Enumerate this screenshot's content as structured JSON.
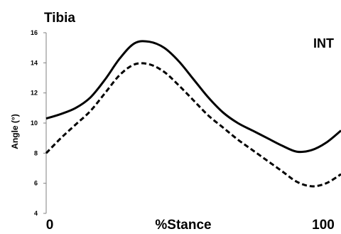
{
  "chart_data": {
    "type": "line",
    "title": "Tibia",
    "corner_label": "INT",
    "xlabel": "%Stance",
    "ylabel": "Angle (°)",
    "xlim": [
      0,
      100
    ],
    "ylim": [
      4,
      16
    ],
    "yticks": [
      "4",
      "6",
      "8",
      "10",
      "12",
      "14",
      "16"
    ],
    "xtick_labels": [
      "0",
      "100"
    ],
    "x": [
      0,
      5,
      10,
      15,
      20,
      25,
      30,
      35,
      40,
      45,
      50,
      55,
      60,
      65,
      70,
      75,
      80,
      85,
      90,
      95,
      100
    ],
    "series": [
      {
        "style": "solid",
        "color": "#000000",
        "values": [
          10.3,
          10.6,
          11.0,
          11.7,
          12.9,
          14.3,
          15.3,
          15.4,
          15.0,
          14.1,
          12.9,
          11.7,
          10.7,
          10.0,
          9.5,
          9.0,
          8.5,
          8.1,
          8.2,
          8.7,
          9.5
        ]
      },
      {
        "style": "dashed",
        "color": "#000000",
        "values": [
          8.0,
          9.0,
          9.9,
          10.8,
          12.0,
          13.2,
          13.9,
          13.9,
          13.4,
          12.5,
          11.5,
          10.5,
          9.7,
          8.9,
          8.2,
          7.5,
          6.8,
          6.1,
          5.8,
          6.0,
          6.6
        ]
      }
    ],
    "grid": false,
    "legend": "none"
  }
}
